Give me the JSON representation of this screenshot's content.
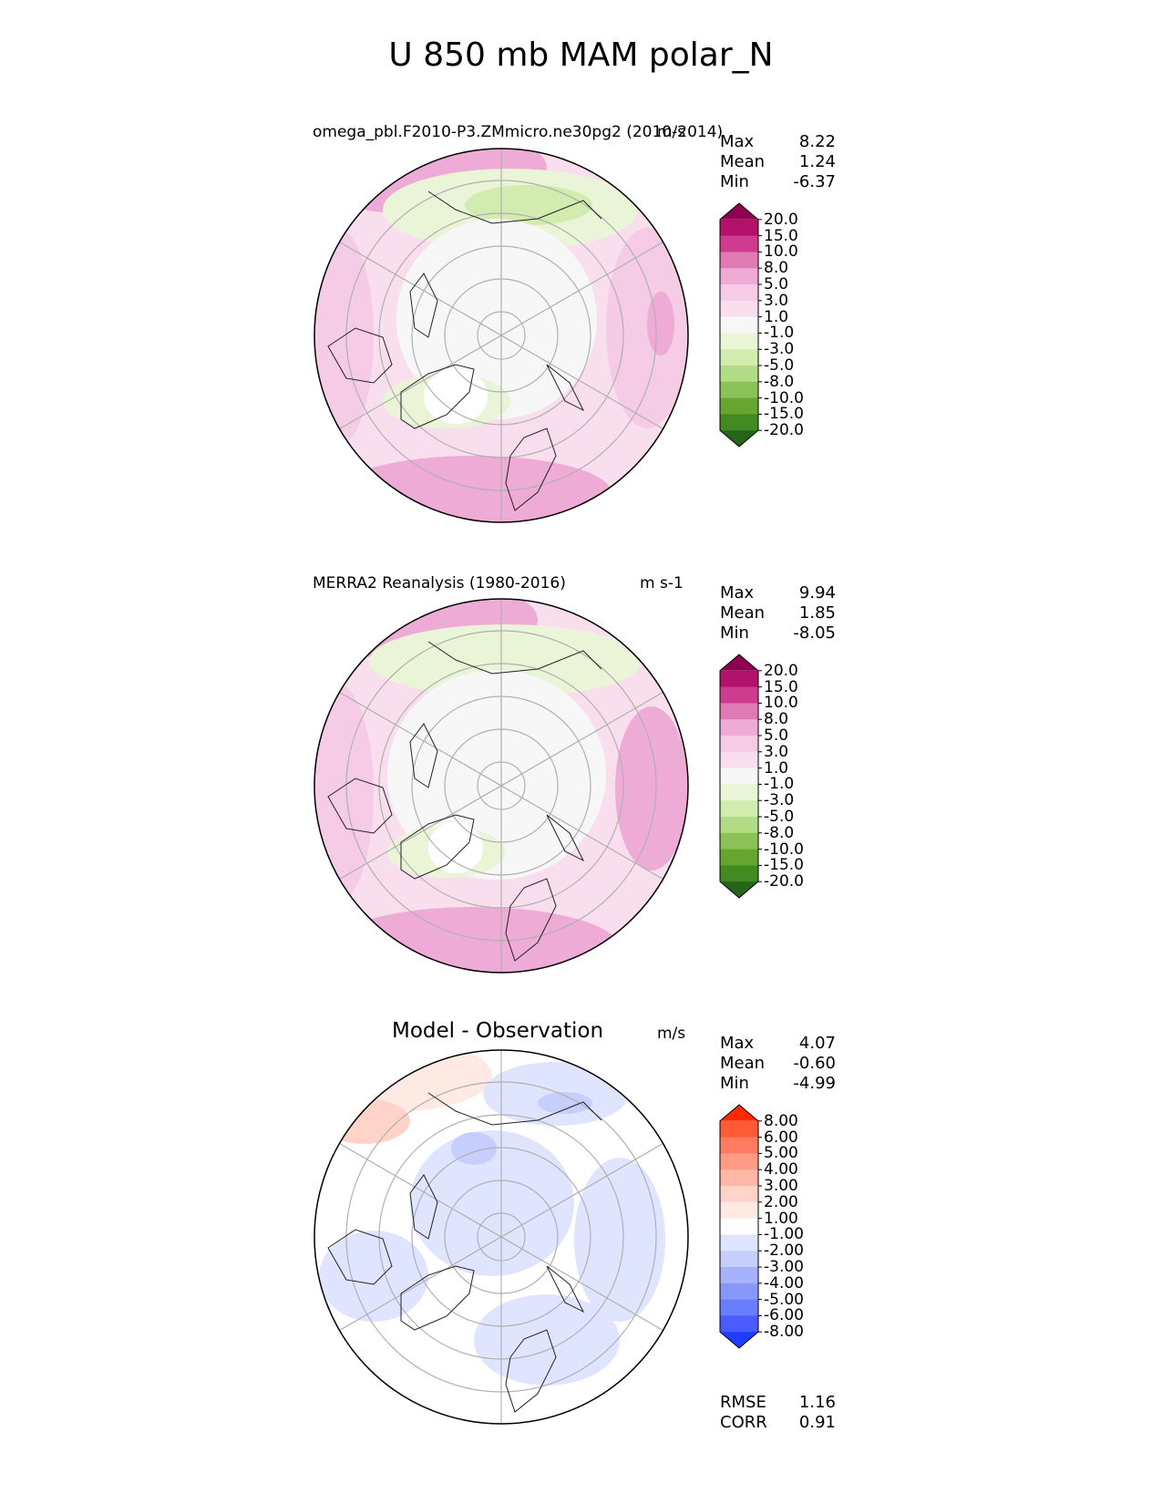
{
  "title": "U 850 mb MAM polar_N",
  "panels": [
    {
      "title_left": "omega_pbl.F2010-P3.ZMmicro.ne30pg2 (2010-2014)",
      "title_right": "m/s",
      "stats": [
        {
          "label": "Max",
          "value": "8.22"
        },
        {
          "label": "Mean",
          "value": "1.24"
        },
        {
          "label": "Min",
          "value": "-6.37"
        }
      ],
      "colorbar": {
        "ticks": [
          "20.0",
          "15.0",
          "10.0",
          "8.0",
          "5.0",
          "3.0",
          "1.0",
          "-1.0",
          "-3.0",
          "-5.0",
          "-8.0",
          "-10.0",
          "-15.0",
          "-20.0"
        ],
        "colors": [
          "#8e0152",
          "#b3126b",
          "#cf3c8f",
          "#df7ab5",
          "#eeabd5",
          "#f6cbe6",
          "#f9dfee",
          "#f7f7f7",
          "#eaf5d8",
          "#d1ecae",
          "#b2dc86",
          "#8bc258",
          "#66a630",
          "#428a22",
          "#276419"
        ]
      }
    },
    {
      "title_left": "MERRA2 Reanalysis (1980-2016)",
      "title_right": "m s-1",
      "stats": [
        {
          "label": "Max",
          "value": "9.94"
        },
        {
          "label": "Mean",
          "value": "1.85"
        },
        {
          "label": "Min",
          "value": "-8.05"
        }
      ],
      "colorbar": {
        "ticks": [
          "20.0",
          "15.0",
          "10.0",
          "8.0",
          "5.0",
          "3.0",
          "1.0",
          "-1.0",
          "-3.0",
          "-5.0",
          "-8.0",
          "-10.0",
          "-15.0",
          "-20.0"
        ],
        "colors": [
          "#8e0152",
          "#b3126b",
          "#cf3c8f",
          "#df7ab5",
          "#eeabd5",
          "#f6cbe6",
          "#f9dfee",
          "#f7f7f7",
          "#eaf5d8",
          "#d1ecae",
          "#b2dc86",
          "#8bc258",
          "#66a630",
          "#428a22",
          "#276419"
        ]
      }
    },
    {
      "title_left": "Model - Observation",
      "title_right": "m/s",
      "stats": [
        {
          "label": "Max",
          "value": "4.07"
        },
        {
          "label": "Mean",
          "value": "-0.60"
        },
        {
          "label": "Min",
          "value": "-4.99"
        }
      ],
      "colorbar": {
        "ticks": [
          "8.00",
          "6.00",
          "5.00",
          "4.00",
          "3.00",
          "2.00",
          "1.00",
          "-1.00",
          "-2.00",
          "-3.00",
          "-4.00",
          "-5.00",
          "-6.00",
          "-8.00"
        ],
        "colors": [
          "#ff2a00",
          "#ff5a36",
          "#ff7b5f",
          "#ff9a85",
          "#ffb8a8",
          "#ffd3c8",
          "#ffe9e3",
          "#ffffff",
          "#e0e5ff",
          "#c6cffc",
          "#a6b3fb",
          "#8797fa",
          "#6a7cff",
          "#4a5cff",
          "#1f3dff"
        ]
      },
      "footer_stats": [
        {
          "label": "RMSE",
          "value": "1.16"
        },
        {
          "label": "CORR",
          "value": "0.91"
        }
      ]
    }
  ],
  "chart_data": [
    {
      "type": "heatmap",
      "projection": "north polar stereographic",
      "title": "omega_pbl.F2010-P3.ZMmicro.ne30pg2 (2010-2014)",
      "units": "m/s",
      "max": 8.22,
      "mean": 1.24,
      "min": -6.37,
      "levels": [
        -20,
        -15,
        -10,
        -8,
        -5,
        -3,
        -1,
        1,
        3,
        5,
        8,
        10,
        15,
        20
      ]
    },
    {
      "type": "heatmap",
      "projection": "north polar stereographic",
      "title": "MERRA2 Reanalysis (1980-2016)",
      "units": "m s-1",
      "max": 9.94,
      "mean": 1.85,
      "min": -8.05,
      "levels": [
        -20,
        -15,
        -10,
        -8,
        -5,
        -3,
        -1,
        1,
        3,
        5,
        8,
        10,
        15,
        20
      ]
    },
    {
      "type": "heatmap",
      "projection": "north polar stereographic",
      "title": "Model - Observation",
      "units": "m/s",
      "max": 4.07,
      "mean": -0.6,
      "min": -4.99,
      "rmse": 1.16,
      "corr": 0.91,
      "levels": [
        -8,
        -6,
        -5,
        -4,
        -3,
        -2,
        -1,
        1,
        2,
        3,
        4,
        5,
        6,
        8
      ]
    }
  ]
}
